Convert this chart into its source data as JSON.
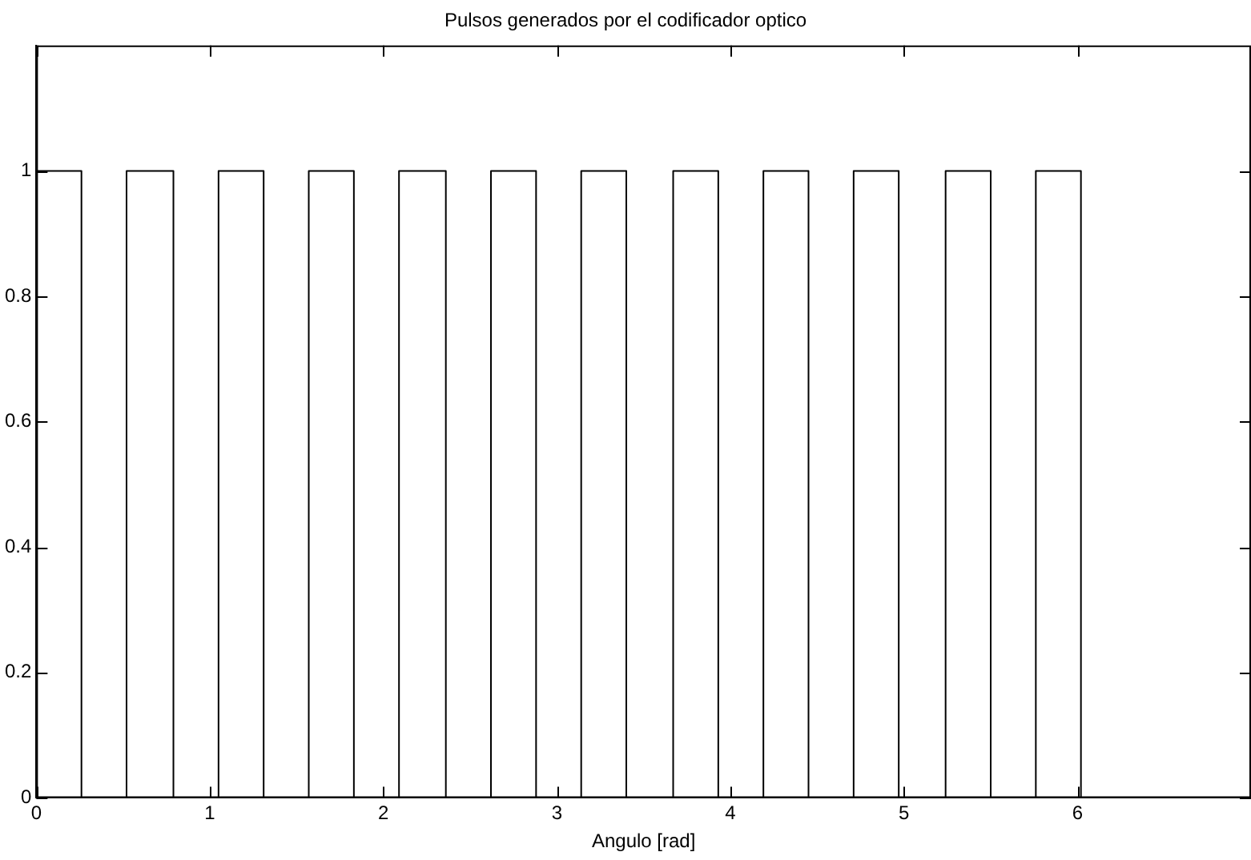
{
  "chart_data": {
    "type": "step",
    "title": "Pulsos generados por el codificador optico",
    "xlabel": "Angulo [rad]",
    "x": [
      0,
      0.26,
      0.52,
      0.79,
      1.05,
      1.31,
      1.57,
      1.83,
      2.09,
      2.36,
      2.62,
      2.88,
      3.14,
      3.4,
      3.67,
      3.93,
      4.19,
      4.45,
      4.71,
      4.97,
      5.24,
      5.5,
      5.76,
      6.02,
      7
    ],
    "series": [
      {
        "color": "#000000",
        "values": [
          1,
          0,
          1,
          0,
          1,
          0,
          1,
          0,
          1,
          0,
          1,
          0,
          1,
          0,
          1,
          0,
          1,
          0,
          1,
          0,
          1,
          0,
          1,
          0,
          0
        ]
      }
    ],
    "xlim": [
      0,
      7
    ],
    "xticks": [
      0,
      1,
      2,
      3,
      4,
      5,
      6
    ],
    "ylim": [
      0,
      1.2
    ],
    "yticks": [
      0,
      0.2,
      0.4,
      0.6,
      0.8,
      1
    ],
    "marker": "none",
    "line_style": "solid"
  }
}
